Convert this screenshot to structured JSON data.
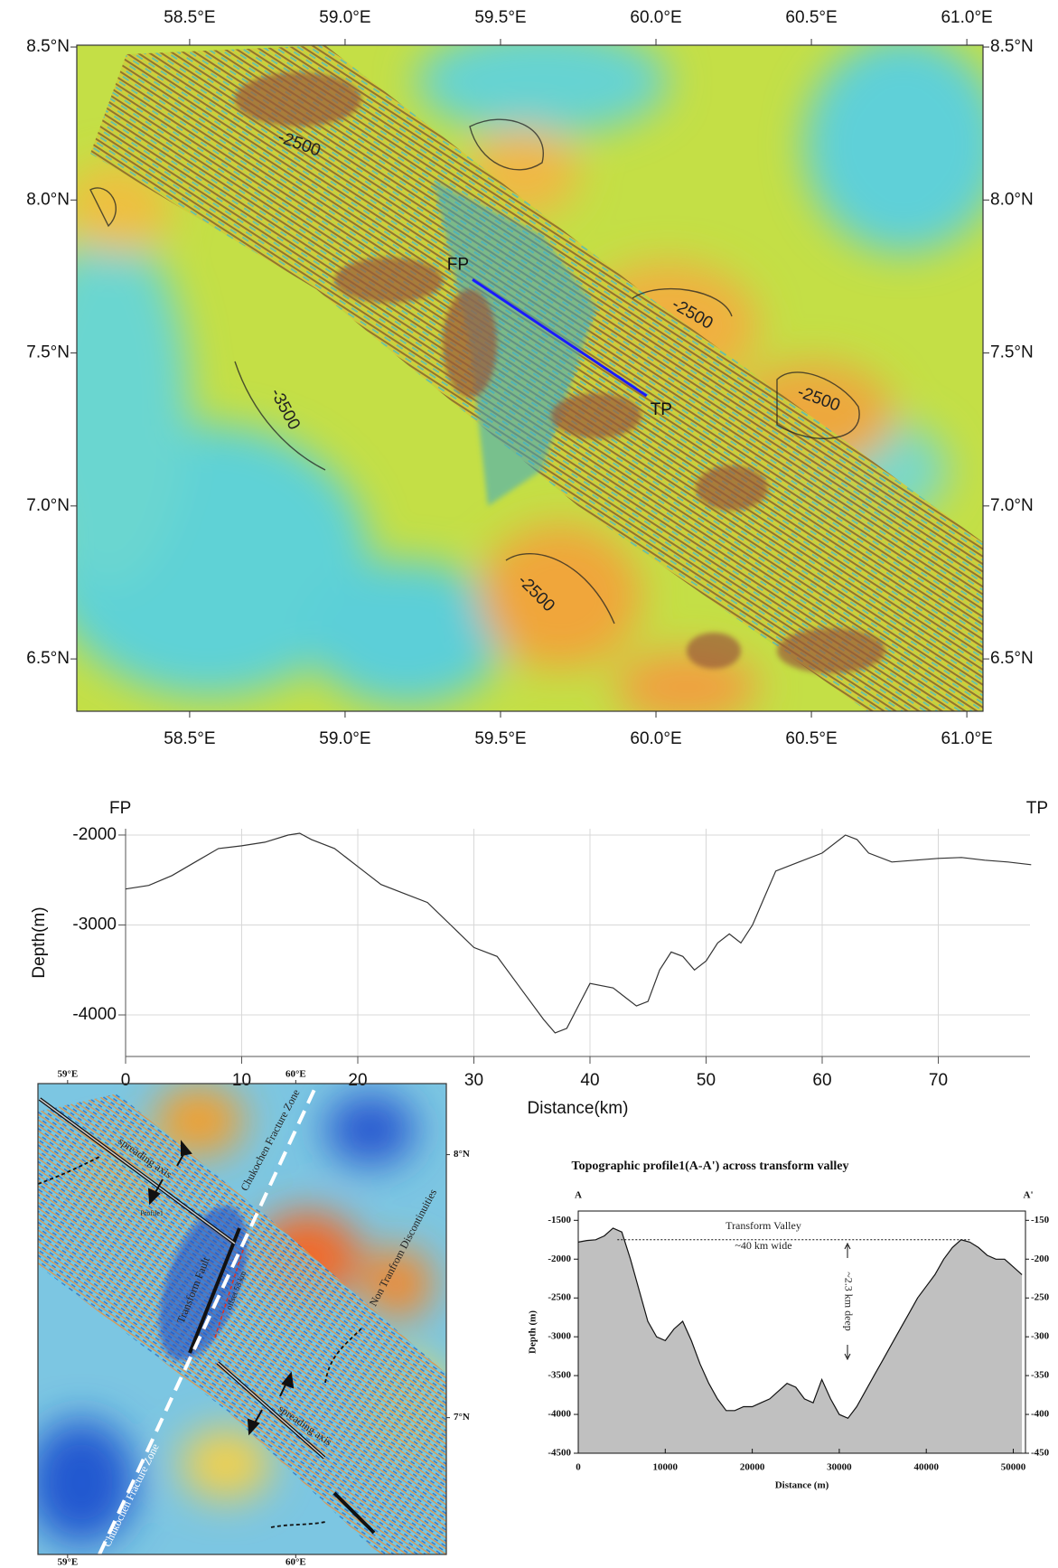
{
  "chart_data": [
    {
      "type": "map",
      "xlim": [
        58.137,
        61.052
      ],
      "ylim": [
        6.329,
        8.506
      ],
      "xticks": [
        {
          "value": 58.5,
          "label": "58.5°E"
        },
        {
          "value": 59.0,
          "label": "59.0°E"
        },
        {
          "value": 59.5,
          "label": "59.5°E"
        },
        {
          "value": 60.0,
          "label": "60.0°E"
        },
        {
          "value": 60.5,
          "label": "60.5°E"
        },
        {
          "value": 61.0,
          "label": "61.0°E"
        }
      ],
      "yticks": [
        {
          "value": 6.5,
          "label": "6.5°N"
        },
        {
          "value": 7.0,
          "label": "7.0°N"
        },
        {
          "value": 7.5,
          "label": "7.5°N"
        },
        {
          "value": 8.0,
          "label": "8.0°N"
        },
        {
          "value": 8.5,
          "label": "8.5°N"
        }
      ],
      "annotations": [
        "-2500",
        "-2500",
        "-2500",
        "-2500",
        "-3500"
      ],
      "profile": {
        "labels": [
          "FP",
          "TP"
        ],
        "lon": [
          59.41,
          59.97
        ],
        "lat": [
          7.74,
          7.36
        ],
        "color": "#1a1aff"
      }
    },
    {
      "type": "line",
      "start_label": "FP",
      "end_label": "TP",
      "xlabel": "Distance(km)",
      "ylabel": "Depth(m)",
      "color": "#333333",
      "grid": true,
      "xlim": [
        0,
        77.9
      ],
      "ylim": [
        -4462,
        -1930
      ],
      "xticks": [
        0,
        10,
        20,
        30,
        40,
        50,
        60,
        70
      ],
      "yticks": [
        -4000,
        -3000,
        -2000
      ],
      "x": [
        0,
        2,
        4,
        6,
        8,
        10,
        12,
        14,
        15,
        16,
        18,
        20,
        22,
        24,
        26,
        28,
        30,
        32,
        34,
        36,
        37,
        38,
        39,
        40,
        42,
        43,
        44,
        45,
        46,
        47,
        48,
        49,
        50,
        51,
        52,
        53,
        54,
        55,
        56,
        58,
        60,
        62,
        63,
        64,
        66,
        68,
        70,
        72,
        74,
        76,
        78
      ],
      "values": [
        -2600,
        -2560,
        -2450,
        -2300,
        -2150,
        -2120,
        -2080,
        -2000,
        -1980,
        -2050,
        -2150,
        -2350,
        -2550,
        -2650,
        -2750,
        -3000,
        -3250,
        -3350,
        -3700,
        -4050,
        -4200,
        -4150,
        -3900,
        -3650,
        -3700,
        -3800,
        -3900,
        -3850,
        -3500,
        -3300,
        -3350,
        -3500,
        -3400,
        -3200,
        -3100,
        -3200,
        -3000,
        -2700,
        -2400,
        -2300,
        -2200,
        -2000,
        -2050,
        -2200,
        -2300,
        -2280,
        -2260,
        -2250,
        -2280,
        -2300,
        -2330
      ]
    },
    {
      "type": "map",
      "xlim": [
        58.87,
        60.66
      ],
      "ylim": [
        6.48,
        8.27
      ],
      "xticks": [
        {
          "value": 59,
          "label": "59°E"
        },
        {
          "value": 60,
          "label": "60°E"
        }
      ],
      "yticks": [
        {
          "value": 7,
          "label": "7°N"
        },
        {
          "value": 8,
          "label": "8°N"
        }
      ],
      "annotations": [
        "spreading axis",
        "Chukochen Fracture Zone",
        "Transform Fault",
        "Profile1",
        "offset 53 km",
        "Non Tranfrom Discontinuities",
        "spreading axis",
        "Chukochen Fracture Zone"
      ]
    },
    {
      "type": "area",
      "title": "Topographic profile1(A-A') across transform valley",
      "start_label": "A",
      "end_label": "A'",
      "xlabel": "Distance (m)",
      "ylabel": "Depth (m)",
      "color": "#c0c0c0",
      "xlim": [
        0,
        51400
      ],
      "ylim": [
        -4500,
        -1380
      ],
      "y2lim": [
        -450,
        -138
      ],
      "xticks": [
        0,
        10000,
        20000,
        30000,
        40000,
        50000
      ],
      "yticks": [
        -4500,
        -4000,
        -3500,
        -3000,
        -2500,
        -2000,
        -1500
      ],
      "y2ticks": [
        -450,
        -400,
        -350,
        -300,
        -250,
        -200,
        -150
      ],
      "x": [
        0,
        1000,
        2000,
        3000,
        4000,
        5000,
        6000,
        7000,
        8000,
        9000,
        10000,
        11000,
        12000,
        13000,
        14000,
        15000,
        16000,
        17000,
        18000,
        19000,
        20000,
        21000,
        22000,
        23000,
        24000,
        25000,
        26000,
        27000,
        28000,
        29000,
        30000,
        31000,
        32000,
        33000,
        34000,
        35000,
        36000,
        37000,
        38000,
        39000,
        40000,
        41000,
        42000,
        43000,
        44000,
        45000,
        46000,
        47000,
        48000,
        49000,
        50000,
        51000
      ],
      "values": [
        -1780,
        -1760,
        -1750,
        -1700,
        -1600,
        -1650,
        -2000,
        -2400,
        -2800,
        -3000,
        -3050,
        -2900,
        -2800,
        -3050,
        -3350,
        -3600,
        -3800,
        -3950,
        -3950,
        -3900,
        -3900,
        -3850,
        -3800,
        -3700,
        -3600,
        -3650,
        -3800,
        -3850,
        -3550,
        -3800,
        -4000,
        -4050,
        -3900,
        -3700,
        -3500,
        -3300,
        -3100,
        -2900,
        -2700,
        -2500,
        -2350,
        -2200,
        -2000,
        -1850,
        -1750,
        -1780,
        -1850,
        -1950,
        -2000,
        -2000,
        -2100,
        -2200
      ],
      "reference_line": {
        "y": -1750,
        "x": [
          4500,
          45000
        ]
      },
      "annotations": [
        "Transform Valley",
        "~40 km wide",
        "~2.3 km deep"
      ]
    }
  ]
}
